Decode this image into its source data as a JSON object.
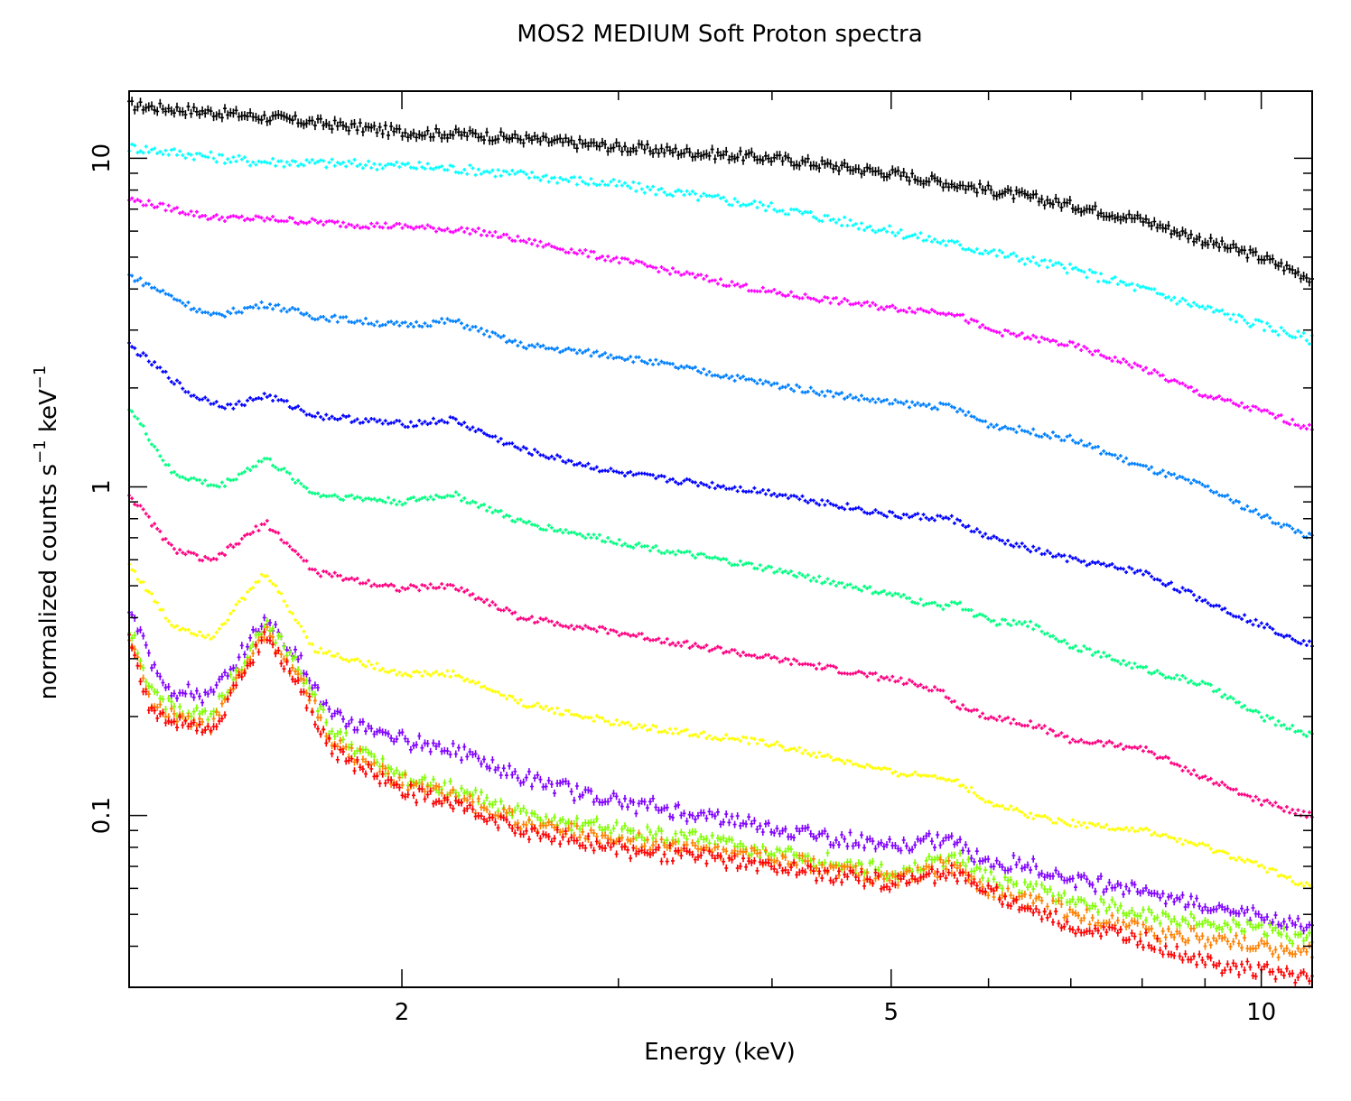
{
  "chart_data": {
    "type": "line",
    "title": "MOS2 MEDIUM Soft Proton spectra",
    "xlabel": "Energy (keV)",
    "ylabel_parts": [
      "normalized counts s",
      "−1",
      " keV",
      "−1"
    ],
    "x_scale": "log",
    "y_scale": "log",
    "xlim": [
      1.2,
      11.0
    ],
    "ylim": [
      0.03,
      16
    ],
    "x_ticks": [
      {
        "value": 2,
        "label": "2"
      },
      {
        "value": 5,
        "label": "5"
      },
      {
        "value": 10,
        "label": "10"
      }
    ],
    "y_ticks": [
      {
        "value": 0.1,
        "label": "0.1"
      },
      {
        "value": 1,
        "label": "1"
      },
      {
        "value": 10,
        "label": "10"
      }
    ],
    "series": [
      {
        "name": "black",
        "color": "#000000",
        "points": [
          [
            1.2,
            14.5
          ],
          [
            1.5,
            13.5
          ],
          [
            2.0,
            12.0
          ],
          [
            2.3,
            11.8
          ],
          [
            3.0,
            10.8
          ],
          [
            4.0,
            10.0
          ],
          [
            5.0,
            9.0
          ],
          [
            6.0,
            8.0
          ],
          [
            7.0,
            7.2
          ],
          [
            8.0,
            6.5
          ],
          [
            9.0,
            5.6
          ],
          [
            10.0,
            5.0
          ],
          [
            11.0,
            4.3
          ]
        ]
      },
      {
        "name": "cyan",
        "color": "#00ffff",
        "points": [
          [
            1.2,
            10.8
          ],
          [
            1.5,
            9.8
          ],
          [
            2.0,
            9.5
          ],
          [
            2.3,
            9.2
          ],
          [
            3.0,
            8.3
          ],
          [
            4.0,
            7.1
          ],
          [
            5.0,
            6.0
          ],
          [
            6.0,
            5.2
          ],
          [
            7.0,
            4.6
          ],
          [
            8.0,
            4.0
          ],
          [
            9.0,
            3.5
          ],
          [
            10.0,
            3.1
          ],
          [
            11.0,
            2.8
          ]
        ]
      },
      {
        "name": "magenta",
        "color": "#ff00ff",
        "points": [
          [
            1.2,
            7.5
          ],
          [
            1.4,
            6.6
          ],
          [
            1.6,
            6.5
          ],
          [
            1.8,
            6.3
          ],
          [
            2.0,
            6.2
          ],
          [
            2.3,
            6.0
          ],
          [
            3.0,
            4.9
          ],
          [
            4.0,
            3.9
          ],
          [
            5.0,
            3.5
          ],
          [
            5.6,
            3.4
          ],
          [
            6.0,
            3.0
          ],
          [
            7.0,
            2.7
          ],
          [
            8.0,
            2.3
          ],
          [
            9.0,
            1.9
          ],
          [
            10.0,
            1.7
          ],
          [
            11.0,
            1.5
          ]
        ]
      },
      {
        "name": "azure",
        "color": "#0080ff",
        "points": [
          [
            1.2,
            4.4
          ],
          [
            1.4,
            3.3
          ],
          [
            1.55,
            3.6
          ],
          [
            1.7,
            3.3
          ],
          [
            2.0,
            3.1
          ],
          [
            2.2,
            3.2
          ],
          [
            2.5,
            2.7
          ],
          [
            3.0,
            2.5
          ],
          [
            4.0,
            2.05
          ],
          [
            5.0,
            1.8
          ],
          [
            5.6,
            1.75
          ],
          [
            6.0,
            1.55
          ],
          [
            7.0,
            1.4
          ],
          [
            8.0,
            1.15
          ],
          [
            9.0,
            1.0
          ],
          [
            10.0,
            0.82
          ],
          [
            11.0,
            0.7
          ]
        ]
      },
      {
        "name": "blue",
        "color": "#0000ff",
        "points": [
          [
            1.2,
            2.7
          ],
          [
            1.35,
            1.9
          ],
          [
            1.45,
            1.75
          ],
          [
            1.55,
            1.9
          ],
          [
            1.7,
            1.65
          ],
          [
            2.0,
            1.55
          ],
          [
            2.2,
            1.6
          ],
          [
            2.5,
            1.3
          ],
          [
            3.0,
            1.1
          ],
          [
            4.0,
            0.96
          ],
          [
            5.0,
            0.82
          ],
          [
            5.6,
            0.8
          ],
          [
            6.0,
            0.7
          ],
          [
            7.0,
            0.6
          ],
          [
            8.0,
            0.55
          ],
          [
            9.0,
            0.45
          ],
          [
            10.0,
            0.38
          ],
          [
            11.0,
            0.33
          ]
        ]
      },
      {
        "name": "spring-green",
        "color": "#00ff80",
        "points": [
          [
            1.2,
            1.75
          ],
          [
            1.3,
            1.1
          ],
          [
            1.42,
            1.0
          ],
          [
            1.55,
            1.22
          ],
          [
            1.7,
            0.95
          ],
          [
            2.0,
            0.9
          ],
          [
            2.2,
            0.95
          ],
          [
            2.5,
            0.78
          ],
          [
            3.0,
            0.68
          ],
          [
            4.0,
            0.56
          ],
          [
            5.0,
            0.47
          ],
          [
            5.5,
            0.43
          ],
          [
            5.6,
            0.45
          ],
          [
            6.0,
            0.39
          ],
          [
            6.5,
            0.38
          ],
          [
            7.0,
            0.33
          ],
          [
            8.0,
            0.28
          ],
          [
            9.0,
            0.25
          ],
          [
            10.0,
            0.2
          ],
          [
            11.0,
            0.175
          ]
        ]
      },
      {
        "name": "rose",
        "color": "#ff0080",
        "points": [
          [
            1.2,
            0.95
          ],
          [
            1.3,
            0.65
          ],
          [
            1.4,
            0.59
          ],
          [
            1.55,
            0.78
          ],
          [
            1.7,
            0.55
          ],
          [
            2.0,
            0.49
          ],
          [
            2.2,
            0.5
          ],
          [
            2.5,
            0.4
          ],
          [
            3.0,
            0.36
          ],
          [
            4.0,
            0.3
          ],
          [
            5.0,
            0.26
          ],
          [
            5.5,
            0.24
          ],
          [
            5.6,
            0.22
          ],
          [
            6.0,
            0.2
          ],
          [
            6.5,
            0.19
          ],
          [
            7.0,
            0.17
          ],
          [
            8.0,
            0.16
          ],
          [
            9.0,
            0.13
          ],
          [
            10.0,
            0.11
          ],
          [
            11.0,
            0.1
          ]
        ]
      },
      {
        "name": "yellow",
        "color": "#ffff00",
        "points": [
          [
            1.2,
            0.58
          ],
          [
            1.3,
            0.38
          ],
          [
            1.4,
            0.35
          ],
          [
            1.55,
            0.55
          ],
          [
            1.7,
            0.32
          ],
          [
            2.0,
            0.27
          ],
          [
            2.2,
            0.27
          ],
          [
            2.5,
            0.22
          ],
          [
            3.0,
            0.19
          ],
          [
            4.0,
            0.165
          ],
          [
            5.0,
            0.135
          ],
          [
            5.6,
            0.13
          ],
          [
            6.0,
            0.11
          ],
          [
            6.5,
            0.1
          ],
          [
            7.0,
            0.095
          ],
          [
            8.0,
            0.09
          ],
          [
            9.0,
            0.08
          ],
          [
            10.0,
            0.07
          ],
          [
            11.0,
            0.06
          ]
        ]
      },
      {
        "name": "violet",
        "color": "#8000ff",
        "points": [
          [
            1.2,
            0.42
          ],
          [
            1.25,
            0.3
          ],
          [
            1.3,
            0.24
          ],
          [
            1.4,
            0.23
          ],
          [
            1.55,
            0.4
          ],
          [
            1.65,
            0.3
          ],
          [
            1.75,
            0.2
          ],
          [
            2.0,
            0.17
          ],
          [
            2.2,
            0.16
          ],
          [
            2.5,
            0.13
          ],
          [
            3.0,
            0.11
          ],
          [
            4.0,
            0.092
          ],
          [
            5.0,
            0.08
          ],
          [
            5.6,
            0.085
          ],
          [
            6.0,
            0.072
          ],
          [
            6.5,
            0.07
          ],
          [
            7.0,
            0.064
          ],
          [
            8.0,
            0.06
          ],
          [
            9.0,
            0.053
          ],
          [
            10.0,
            0.05
          ],
          [
            11.0,
            0.045
          ]
        ]
      },
      {
        "name": "chartreuse",
        "color": "#80ff00",
        "points": [
          [
            1.2,
            0.38
          ],
          [
            1.25,
            0.24
          ],
          [
            1.3,
            0.21
          ],
          [
            1.4,
            0.2
          ],
          [
            1.55,
            0.38
          ],
          [
            1.65,
            0.28
          ],
          [
            1.75,
            0.18
          ],
          [
            2.0,
            0.13
          ],
          [
            2.2,
            0.12
          ],
          [
            2.5,
            0.1
          ],
          [
            3.0,
            0.09
          ],
          [
            4.0,
            0.078
          ],
          [
            5.0,
            0.067
          ],
          [
            5.6,
            0.075
          ],
          [
            6.0,
            0.064
          ],
          [
            6.5,
            0.06
          ],
          [
            7.0,
            0.055
          ],
          [
            8.0,
            0.05
          ],
          [
            9.0,
            0.047
          ],
          [
            10.0,
            0.045
          ],
          [
            11.0,
            0.042
          ]
        ]
      },
      {
        "name": "orange",
        "color": "#ff8000",
        "points": [
          [
            1.2,
            0.36
          ],
          [
            1.25,
            0.22
          ],
          [
            1.3,
            0.2
          ],
          [
            1.4,
            0.19
          ],
          [
            1.55,
            0.37
          ],
          [
            1.65,
            0.26
          ],
          [
            1.75,
            0.17
          ],
          [
            2.0,
            0.125
          ],
          [
            2.2,
            0.115
          ],
          [
            2.5,
            0.095
          ],
          [
            3.0,
            0.085
          ],
          [
            4.0,
            0.074
          ],
          [
            5.0,
            0.064
          ],
          [
            5.6,
            0.07
          ],
          [
            6.0,
            0.06
          ],
          [
            6.5,
            0.055
          ],
          [
            7.0,
            0.05
          ],
          [
            8.0,
            0.045
          ],
          [
            9.0,
            0.042
          ],
          [
            10.0,
            0.04
          ],
          [
            11.0,
            0.038
          ]
        ]
      },
      {
        "name": "red",
        "color": "#ff0000",
        "points": [
          [
            1.2,
            0.34
          ],
          [
            1.25,
            0.21
          ],
          [
            1.3,
            0.19
          ],
          [
            1.4,
            0.18
          ],
          [
            1.55,
            0.36
          ],
          [
            1.65,
            0.25
          ],
          [
            1.75,
            0.16
          ],
          [
            2.0,
            0.12
          ],
          [
            2.2,
            0.11
          ],
          [
            2.5,
            0.09
          ],
          [
            3.0,
            0.08
          ],
          [
            4.0,
            0.07
          ],
          [
            5.0,
            0.062
          ],
          [
            5.6,
            0.068
          ],
          [
            6.0,
            0.058
          ],
          [
            6.5,
            0.052
          ],
          [
            7.0,
            0.046
          ],
          [
            8.0,
            0.042
          ],
          [
            9.0,
            0.036
          ],
          [
            10.0,
            0.034
          ],
          [
            11.0,
            0.032
          ]
        ]
      }
    ]
  }
}
